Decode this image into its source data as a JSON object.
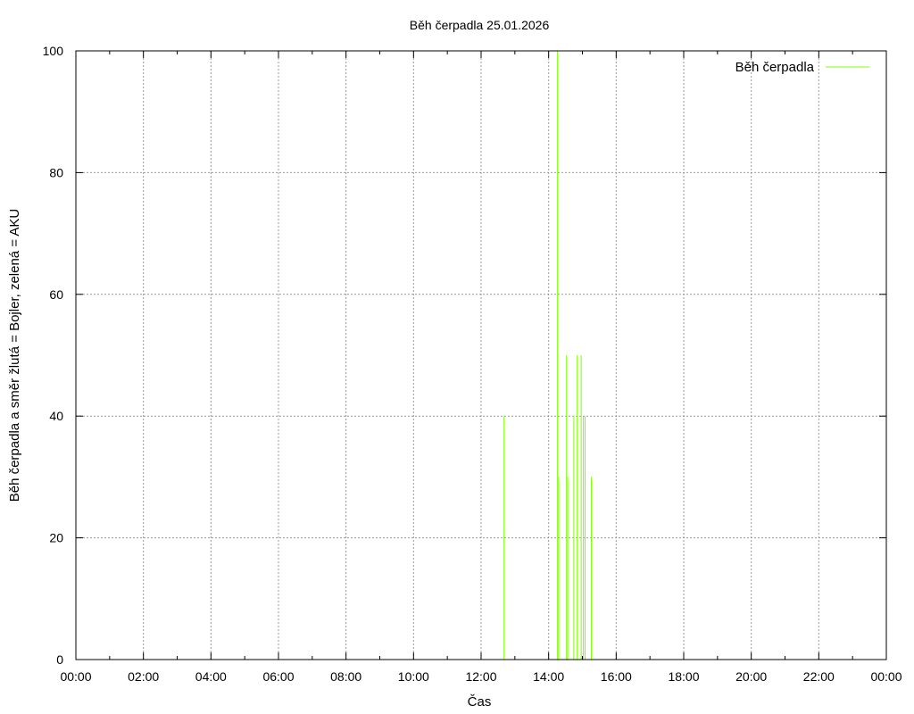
{
  "chart_data": {
    "type": "line",
    "title": "Běh čerpadla 25.01.2026",
    "xlabel": "Čas",
    "ylabel": "Běh čerpadla a směr žlutá = Bojler, zelená = AKU",
    "xlim": [
      "00:00",
      "24:00"
    ],
    "ylim": [
      0,
      100
    ],
    "x_ticks": [
      "00:00",
      "02:00",
      "04:00",
      "06:00",
      "08:00",
      "10:00",
      "12:00",
      "14:00",
      "16:00",
      "18:00",
      "20:00",
      "22:00",
      "00:00"
    ],
    "y_ticks": [
      "0",
      "20",
      "40",
      "60",
      "80",
      "100"
    ],
    "grid": true,
    "legend_position": "top-right",
    "series": [
      {
        "name": "Běh čerpadla",
        "color": "#7fff00",
        "points": [
          {
            "x": "12:40",
            "y": 40
          },
          {
            "x": "14:15",
            "y": 100
          },
          {
            "x": "14:17",
            "y": 30
          },
          {
            "x": "14:31",
            "y": 50
          },
          {
            "x": "14:33",
            "y": 30
          },
          {
            "x": "14:44",
            "y": 40
          },
          {
            "x": "14:50",
            "y": 50
          },
          {
            "x": "14:57",
            "y": 50
          },
          {
            "x": "15:01",
            "y": 40
          },
          {
            "x": "15:04",
            "y": 40
          },
          {
            "x": "15:15",
            "y": 30
          }
        ]
      }
    ]
  }
}
